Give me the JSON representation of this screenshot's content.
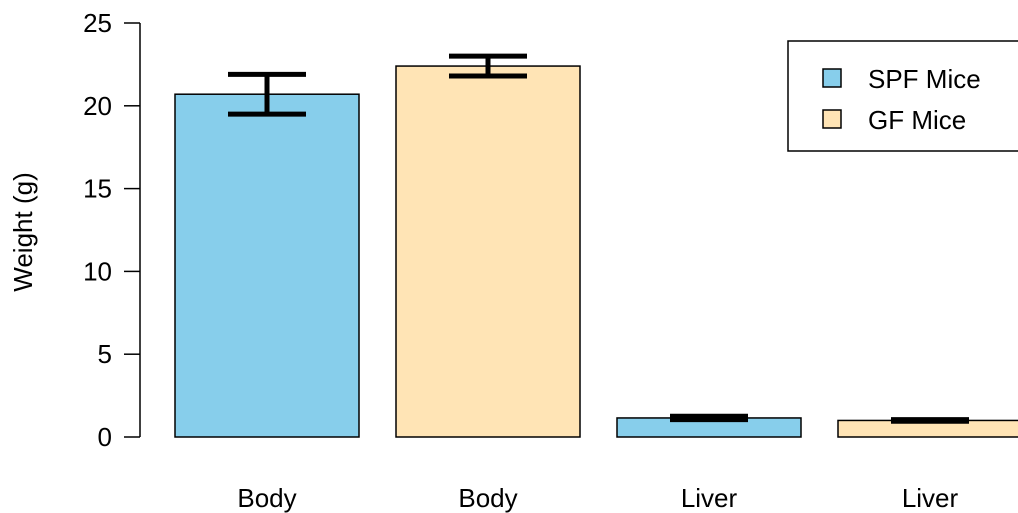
{
  "chart_data": {
    "type": "bar",
    "categories": [
      "Body",
      "Body",
      "Liver",
      "Liver"
    ],
    "values": [
      20.7,
      22.4,
      1.15,
      1.0
    ],
    "errors": [
      1.2,
      0.6,
      0.1,
      0.05
    ],
    "groups": [
      "SPF Mice",
      "GF Mice",
      "SPF Mice",
      "GF Mice"
    ],
    "ylabel": "Weight (g)",
    "ylim": [
      0,
      25
    ],
    "yticks": [
      "0",
      "5",
      "10",
      "15",
      "20",
      "25"
    ],
    "legend": {
      "placement": "top-right",
      "entries": [
        {
          "label": "SPF Mice",
          "color": "#87CEEB"
        },
        {
          "label": "GF Mice",
          "color": "#FFE4B5"
        }
      ]
    },
    "grid": false
  }
}
